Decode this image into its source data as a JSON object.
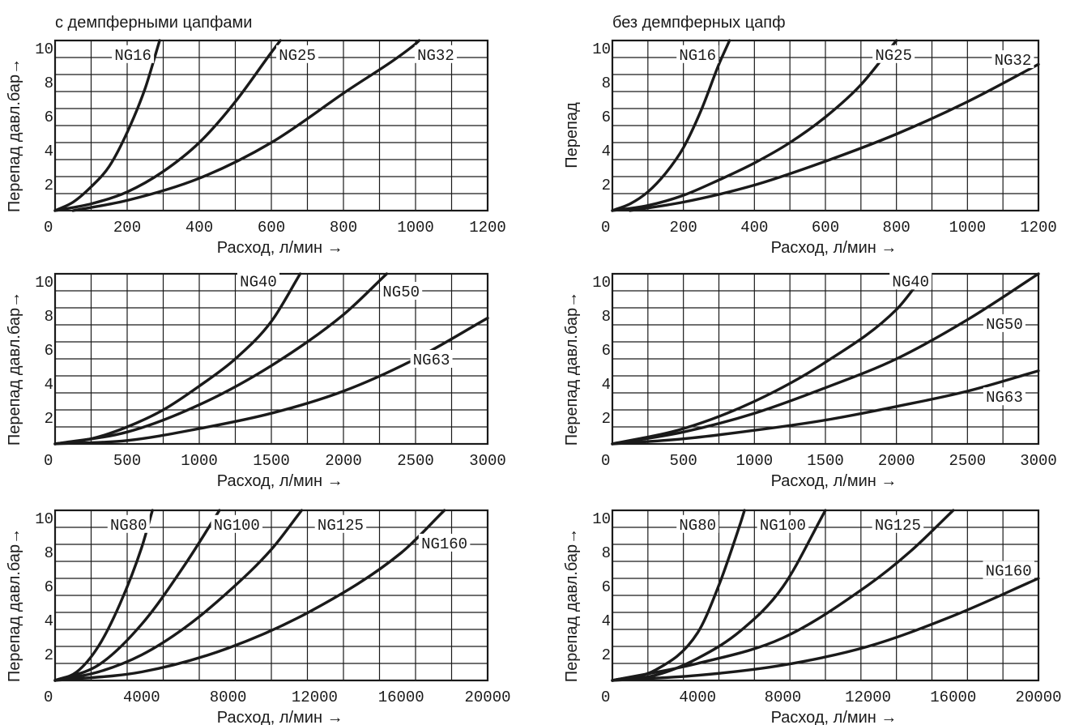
{
  "headers": {
    "left": "с демпферными цапфами",
    "right": "без демпферных цапф"
  },
  "colors": {
    "ink": "#1a1a1a",
    "background": "#ffffff"
  },
  "chart_data": [
    {
      "type": "line",
      "xlabel": "Расход, л/мин →",
      "ylabel": "Перепад давл.бар→",
      "xlim": [
        0,
        1200
      ],
      "ylim": [
        0,
        10
      ],
      "xticks": [
        "0",
        "200",
        "400",
        "600",
        "800",
        "1000",
        "1200"
      ],
      "yticks": [
        "2",
        "4",
        "6",
        "8",
        "10"
      ],
      "grid": true,
      "series": [
        {
          "name": "NG16",
          "x": [
            0,
            50,
            100,
            150,
            200,
            250,
            290
          ],
          "y": [
            0,
            0.5,
            1.4,
            2.6,
            4.6,
            7.2,
            10
          ]
        },
        {
          "name": "NG25",
          "x": [
            0,
            100,
            200,
            300,
            400,
            500,
            600,
            625
          ],
          "y": [
            0,
            0.4,
            1.1,
            2.3,
            4.0,
            6.4,
            9.3,
            10
          ]
        },
        {
          "name": "NG32",
          "x": [
            50,
            200,
            400,
            600,
            800,
            1000,
            1010
          ],
          "y": [
            0,
            0.6,
            1.9,
            4.0,
            6.9,
            9.8,
            10
          ]
        }
      ]
    },
    {
      "type": "line",
      "xlabel": "Расход, л/мин →",
      "ylabel": "Перепад",
      "xlim": [
        0,
        1200
      ],
      "ylim": [
        0,
        10
      ],
      "xticks": [
        "0",
        "200",
        "400",
        "600",
        "800",
        "1000",
        "1200"
      ],
      "yticks": [
        "2",
        "4",
        "6",
        "8",
        "10"
      ],
      "grid": true,
      "series": [
        {
          "name": "NG16",
          "x": [
            0,
            50,
            100,
            150,
            200,
            250,
            300,
            330
          ],
          "y": [
            0,
            0.4,
            1.1,
            2.2,
            3.7,
            5.9,
            8.6,
            10
          ]
        },
        {
          "name": "NG25",
          "x": [
            0,
            100,
            200,
            300,
            400,
            500,
            600,
            700,
            800
          ],
          "y": [
            0,
            0.3,
            0.9,
            1.8,
            2.8,
            4.0,
            5.5,
            7.4,
            10
          ]
        },
        {
          "name": "NG32",
          "x": [
            50,
            200,
            400,
            600,
            800,
            1000,
            1200
          ],
          "y": [
            0,
            0.5,
            1.5,
            2.9,
            4.5,
            6.4,
            8.6
          ]
        }
      ]
    },
    {
      "type": "line",
      "xlabel": "Расход, л/мин →",
      "ylabel": "Перепад давл.бар→",
      "xlim": [
        0,
        3000
      ],
      "ylim": [
        0,
        10
      ],
      "xticks": [
        "0",
        "500",
        "1000",
        "1500",
        "2000",
        "2500",
        "3000"
      ],
      "yticks": [
        "2",
        "4",
        "6",
        "8",
        "10"
      ],
      "grid": true,
      "series": [
        {
          "name": "NG40",
          "x": [
            0,
            250,
            500,
            750,
            1000,
            1250,
            1500,
            1700
          ],
          "y": [
            0,
            0.3,
            1.0,
            2.0,
            3.4,
            5.0,
            7.2,
            10
          ]
        },
        {
          "name": "NG50",
          "x": [
            0,
            500,
            1000,
            1500,
            2000,
            2300
          ],
          "y": [
            0,
            0.7,
            2.3,
            4.6,
            7.6,
            10
          ]
        },
        {
          "name": "NG63",
          "x": [
            0,
            500,
            1000,
            1500,
            2000,
            2500,
            3000
          ],
          "y": [
            0,
            0.2,
            0.9,
            1.8,
            3.1,
            5.0,
            7.4
          ]
        }
      ]
    },
    {
      "type": "line",
      "xlabel": "Расход, л/мин →",
      "ylabel": "Перепад давл.бар→",
      "xlim": [
        0,
        3000
      ],
      "ylim": [
        0,
        10
      ],
      "xticks": [
        "0",
        "500",
        "1000",
        "1500",
        "2000",
        "2500",
        "3000"
      ],
      "yticks": [
        "2",
        "4",
        "6",
        "8",
        "10"
      ],
      "grid": true,
      "series": [
        {
          "name": "NG40",
          "x": [
            0,
            500,
            1000,
            1500,
            2000,
            2200
          ],
          "y": [
            0,
            0.9,
            2.5,
            4.8,
            7.9,
            10
          ]
        },
        {
          "name": "NG50",
          "x": [
            0,
            500,
            1000,
            1500,
            2000,
            2500,
            3000
          ],
          "y": [
            0,
            0.7,
            1.8,
            3.3,
            5.0,
            7.3,
            10
          ]
        },
        {
          "name": "NG63",
          "x": [
            0,
            500,
            1000,
            1500,
            2000,
            2500,
            3000
          ],
          "y": [
            0,
            0.3,
            0.8,
            1.4,
            2.2,
            3.1,
            4.3
          ]
        }
      ]
    },
    {
      "type": "line",
      "xlabel": "Расход, л/мин →",
      "ylabel": "Перепад давл.бар→",
      "xlim": [
        0,
        20000
      ],
      "ylim": [
        0,
        10
      ],
      "xticks": [
        "0",
        "4000",
        "8000",
        "12000",
        "16000",
        "20000"
      ],
      "yticks": [
        "2",
        "4",
        "6",
        "8",
        "10"
      ],
      "grid": true,
      "series": [
        {
          "name": "NG80",
          "x": [
            0,
            1000,
            2000,
            3000,
            4000,
            4500
          ],
          "y": [
            0,
            0.5,
            2.0,
            4.5,
            7.8,
            10
          ]
        },
        {
          "name": "NG100",
          "x": [
            0,
            2000,
            4000,
            6000,
            7600
          ],
          "y": [
            0,
            0.9,
            3.3,
            6.8,
            10
          ]
        },
        {
          "name": "NG125",
          "x": [
            0,
            2000,
            4000,
            6000,
            8000,
            10000,
            11400
          ],
          "y": [
            0,
            0.5,
            1.5,
            3.1,
            5.2,
            7.7,
            10
          ]
        },
        {
          "name": "NG160",
          "x": [
            0,
            4000,
            8000,
            12000,
            16000,
            18000
          ],
          "y": [
            0,
            0.5,
            1.9,
            4.2,
            7.5,
            10
          ]
        }
      ]
    },
    {
      "type": "line",
      "xlabel": "Расход, л/мин →",
      "ylabel": "Перепад давл.бар→",
      "xlim": [
        0,
        20000
      ],
      "ylim": [
        0,
        10
      ],
      "xticks": [
        "0",
        "4000",
        "8000",
        "12000",
        "16000",
        "20000"
      ],
      "yticks": [
        "2",
        "4",
        "6",
        "8",
        "10"
      ],
      "grid": true,
      "series": [
        {
          "name": "NG80",
          "x": [
            0,
            2000,
            4000,
            5000,
            6000,
            6200
          ],
          "y": [
            0,
            0.6,
            2.8,
            5.6,
            9.2,
            10
          ]
        },
        {
          "name": "NG100",
          "x": [
            0,
            2000,
            4000,
            6000,
            8000,
            10000
          ],
          "y": [
            0,
            0.3,
            1.3,
            2.9,
            5.5,
            10
          ]
        },
        {
          "name": "NG125",
          "x": [
            0,
            4000,
            8000,
            12000,
            14000,
            16000
          ],
          "y": [
            0,
            1.0,
            2.5,
            5.6,
            7.6,
            10
          ]
        },
        {
          "name": "NG160",
          "x": [
            0,
            4000,
            8000,
            12000,
            16000,
            20000
          ],
          "y": [
            0,
            0.3,
            0.9,
            2.0,
            3.8,
            6.0
          ]
        }
      ]
    }
  ]
}
